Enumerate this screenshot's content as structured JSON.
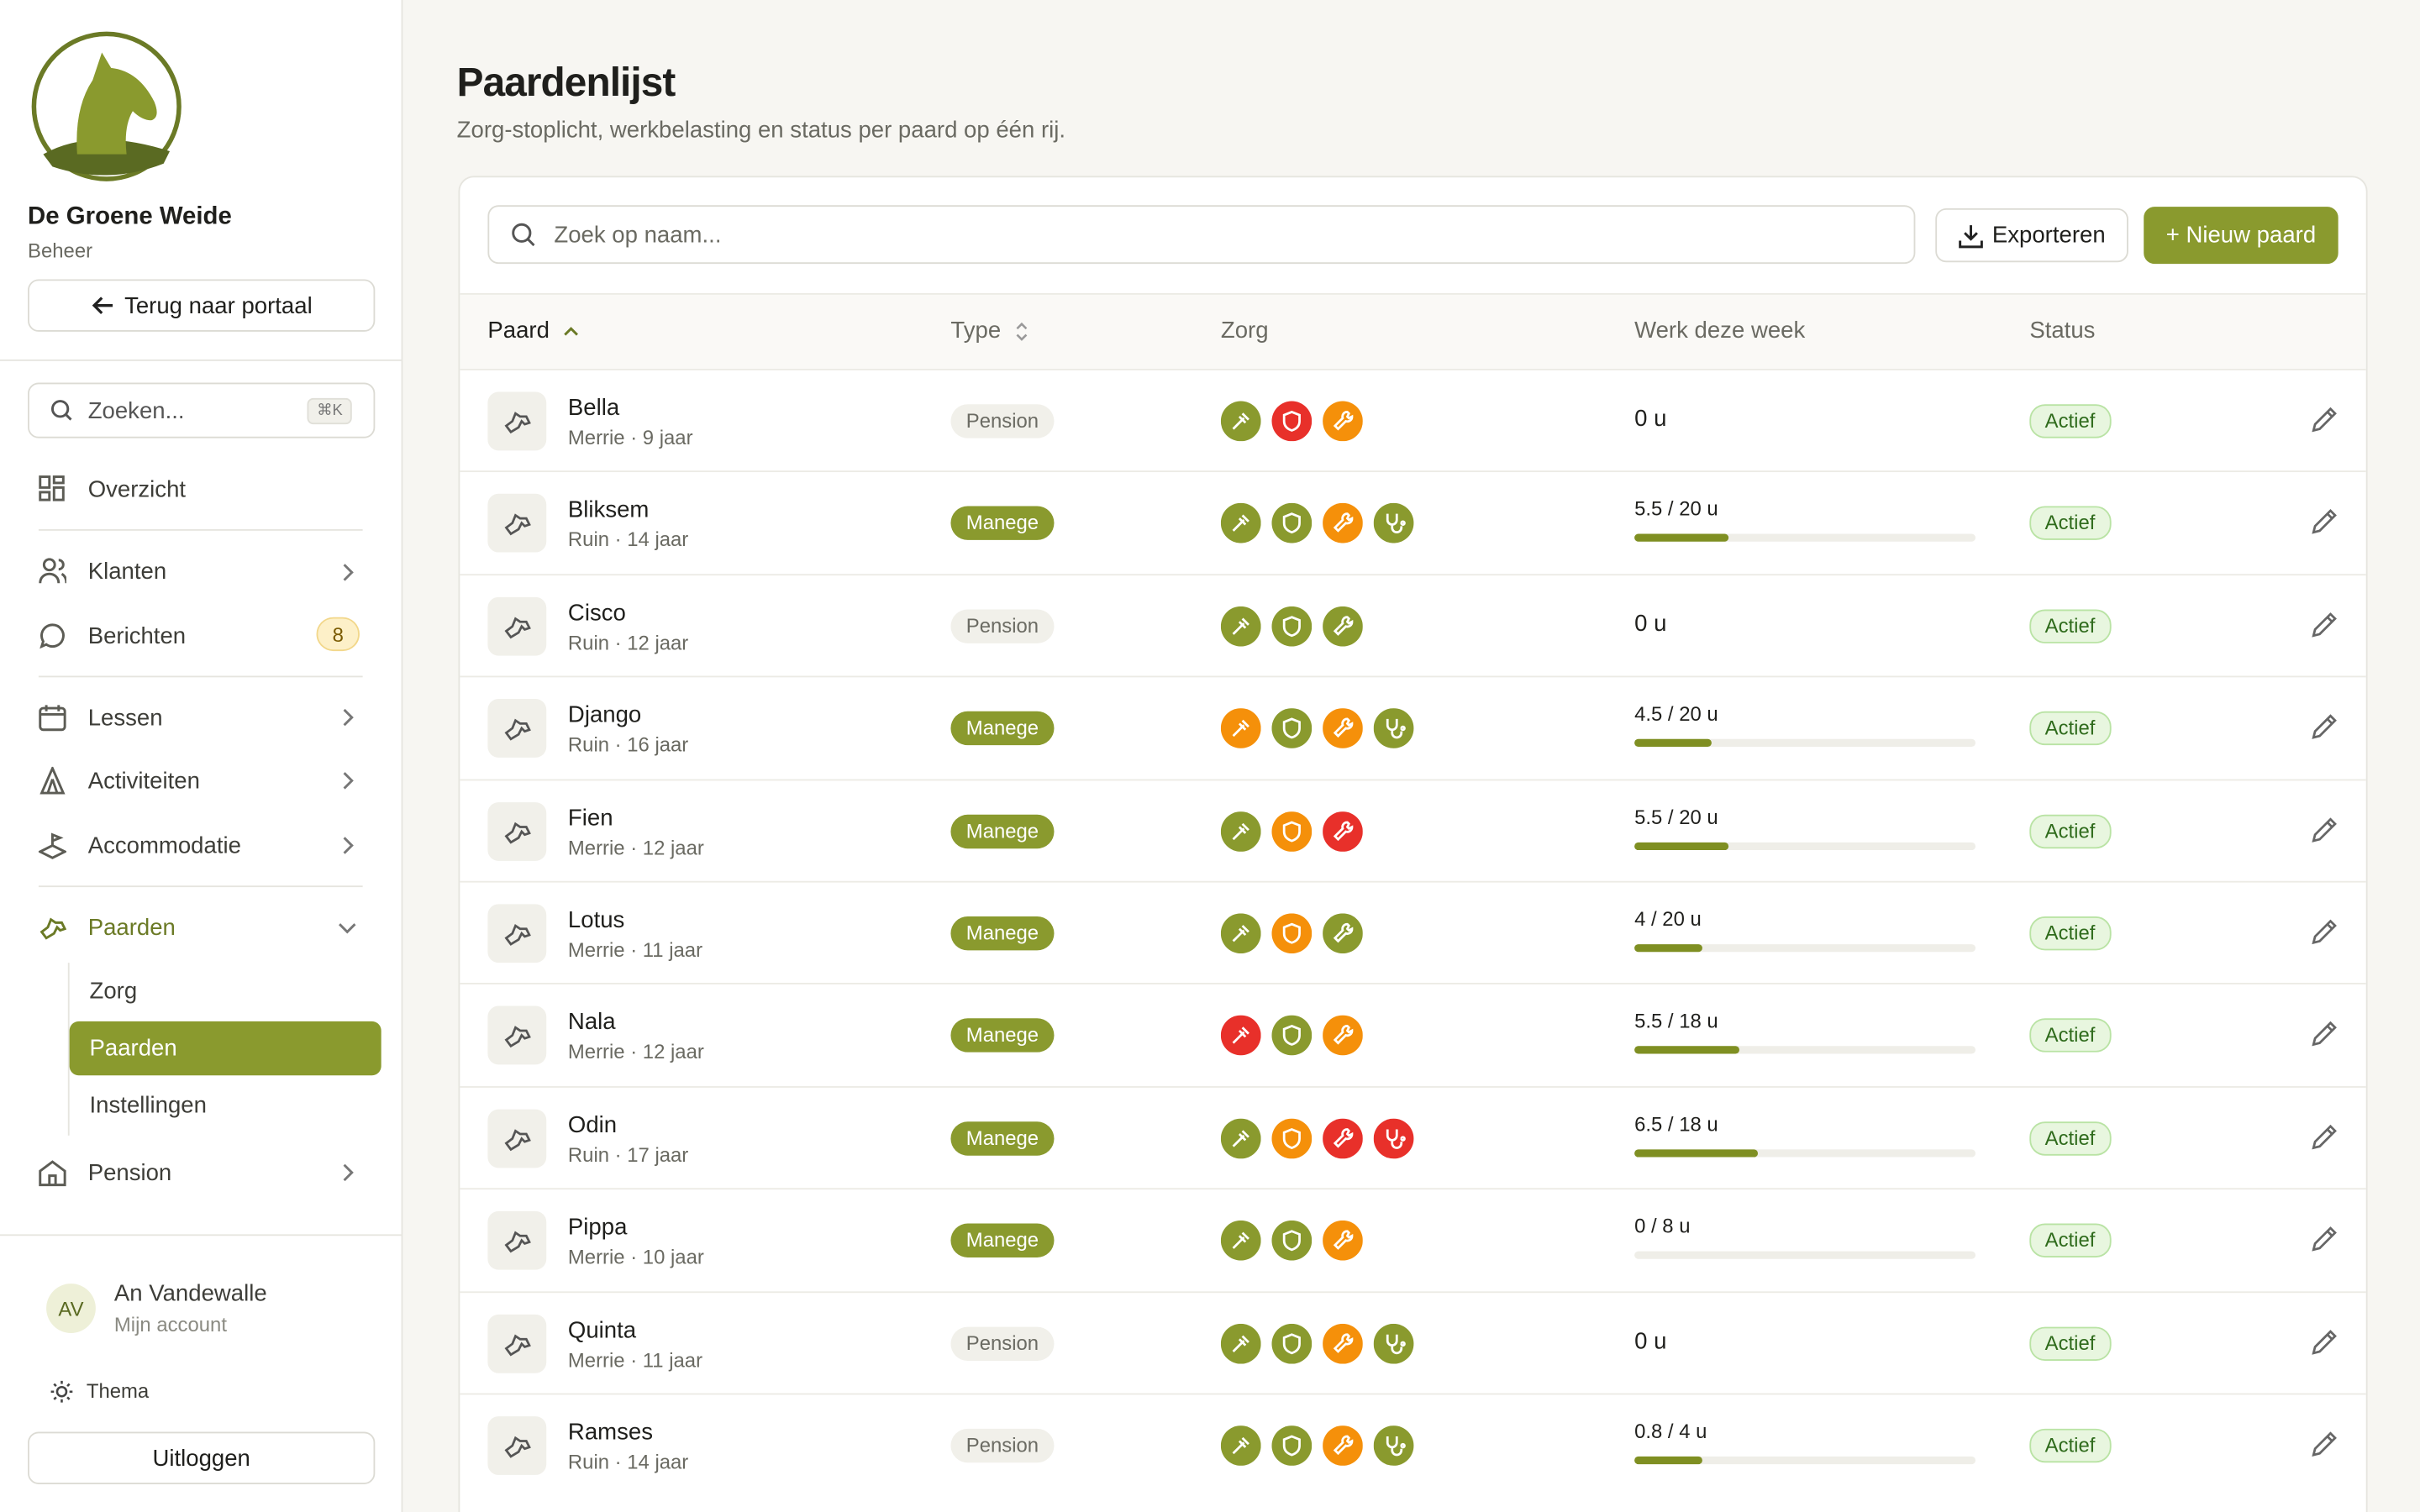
{
  "sidebar": {
    "org_name": "De Groene Weide",
    "org_role": "Beheer",
    "back_button": "Terug naar portaal",
    "search_placeholder": "Zoeken...",
    "search_shortcut": "⌘K",
    "nav": {
      "overview": "Overzicht",
      "clients": "Klanten",
      "messages": "Berichten",
      "messages_badge": "8",
      "lessons": "Lessen",
      "activities": "Activiteiten",
      "accommodation": "Accommodatie",
      "horses": "Paarden",
      "horses_sub": [
        "Zorg",
        "Paarden",
        "Instellingen"
      ],
      "pension": "Pension"
    },
    "user": {
      "initials": "AV",
      "name": "An Vandewalle",
      "subtitle": "Mijn account"
    },
    "theme": "Thema",
    "logout": "Uitloggen"
  },
  "header": {
    "title": "Paardenlijst",
    "subtitle": "Zorg-stoplicht, werkbelasting en status per paard op één rij."
  },
  "toolbar": {
    "search_placeholder": "Zoek op naam...",
    "export": "Exporteren",
    "new": "+ Nieuw paard"
  },
  "table": {
    "columns": [
      "Paard",
      "Type",
      "Zorg",
      "Werk deze week",
      "Status"
    ],
    "rows": [
      {
        "name": "Bella",
        "info": "Merrie · 9 jaar",
        "type": "Pension",
        "type_bg": "#f1f0ea",
        "type_fg": "#6b6b63",
        "care": [
          "#8a9a2e",
          "#e8302a",
          "#f5900a"
        ],
        "work": {
          "label": "0 u"
        },
        "status": "Actief"
      },
      {
        "name": "Bliksem",
        "info": "Ruin · 14 jaar",
        "type": "Manege",
        "type_bg": "#8a9a2e",
        "type_fg": "#ffffff",
        "care": [
          "#8a9a2e",
          "#8a9a2e",
          "#f5900a",
          "#8a9a2e"
        ],
        "work": {
          "label": "5.5 / 20 u",
          "done": 5.5,
          "max": 20
        },
        "status": "Actief"
      },
      {
        "name": "Cisco",
        "info": "Ruin · 12 jaar",
        "type": "Pension",
        "type_bg": "#f1f0ea",
        "type_fg": "#6b6b63",
        "care": [
          "#8a9a2e",
          "#8a9a2e",
          "#8a9a2e"
        ],
        "work": {
          "label": "0 u"
        },
        "status": "Actief"
      },
      {
        "name": "Django",
        "info": "Ruin · 16 jaar",
        "type": "Manege",
        "type_bg": "#8a9a2e",
        "type_fg": "#ffffff",
        "care": [
          "#f5900a",
          "#8a9a2e",
          "#f5900a",
          "#8a9a2e"
        ],
        "work": {
          "label": "4.5 / 20 u",
          "done": 4.5,
          "max": 20
        },
        "status": "Actief"
      },
      {
        "name": "Fien",
        "info": "Merrie · 12 jaar",
        "type": "Manege",
        "type_bg": "#8a9a2e",
        "type_fg": "#ffffff",
        "care": [
          "#8a9a2e",
          "#f5900a",
          "#e8302a"
        ],
        "work": {
          "label": "5.5 / 20 u",
          "done": 5.5,
          "max": 20
        },
        "status": "Actief"
      },
      {
        "name": "Lotus",
        "info": "Merrie · 11 jaar",
        "type": "Manege",
        "type_bg": "#8a9a2e",
        "type_fg": "#ffffff",
        "care": [
          "#8a9a2e",
          "#f5900a",
          "#8a9a2e"
        ],
        "work": {
          "label": "4 / 20 u",
          "done": 4,
          "max": 20
        },
        "status": "Actief"
      },
      {
        "name": "Nala",
        "info": "Merrie · 12 jaar",
        "type": "Manege",
        "type_bg": "#8a9a2e",
        "type_fg": "#ffffff",
        "care": [
          "#e8302a",
          "#8a9a2e",
          "#f5900a"
        ],
        "work": {
          "label": "5.5 / 18 u",
          "done": 5.5,
          "max": 18
        },
        "status": "Actief"
      },
      {
        "name": "Odin",
        "info": "Ruin · 17 jaar",
        "type": "Manege",
        "type_bg": "#8a9a2e",
        "type_fg": "#ffffff",
        "care": [
          "#8a9a2e",
          "#f5900a",
          "#e8302a",
          "#e8302a"
        ],
        "work": {
          "label": "6.5 / 18 u",
          "done": 6.5,
          "max": 18
        },
        "status": "Actief"
      },
      {
        "name": "Pippa",
        "info": "Merrie · 10 jaar",
        "type": "Manege",
        "type_bg": "#8a9a2e",
        "type_fg": "#ffffff",
        "care": [
          "#8a9a2e",
          "#8a9a2e",
          "#f5900a"
        ],
        "work": {
          "label": "0 / 8 u",
          "done": 0,
          "max": 8
        },
        "status": "Actief"
      },
      {
        "name": "Quinta",
        "info": "Merrie · 11 jaar",
        "type": "Pension",
        "type_bg": "#f1f0ea",
        "type_fg": "#6b6b63",
        "care": [
          "#8a9a2e",
          "#8a9a2e",
          "#f5900a",
          "#8a9a2e"
        ],
        "work": {
          "label": "0 u"
        },
        "status": "Actief"
      },
      {
        "name": "Ramses",
        "info": "Ruin · 14 jaar",
        "type": "Pension",
        "type_bg": "#f1f0ea",
        "type_fg": "#6b6b63",
        "care": [
          "#8a9a2e",
          "#8a9a2e",
          "#f5900a",
          "#8a9a2e"
        ],
        "work": {
          "label": "0.8 / 4 u",
          "done": 0.8,
          "max": 4
        },
        "status": "Actief"
      }
    ]
  }
}
